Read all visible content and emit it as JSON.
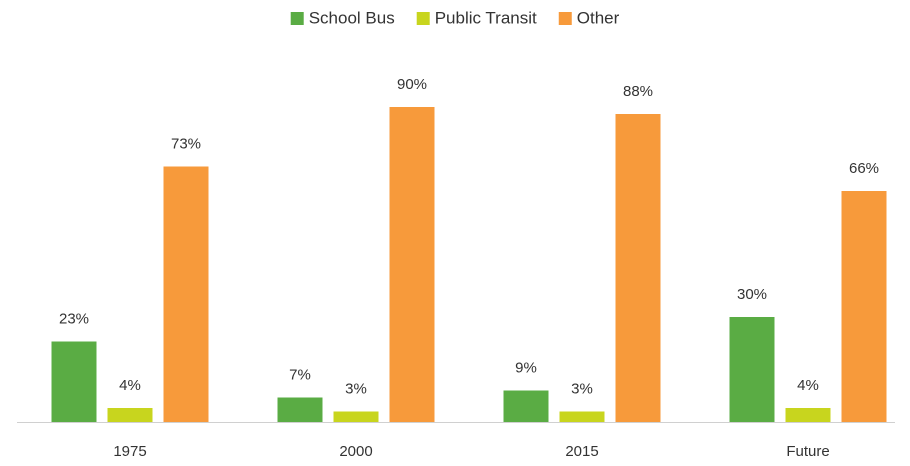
{
  "chart_data": {
    "type": "bar",
    "categories": [
      "1975",
      "2000",
      "2015",
      "Future"
    ],
    "series": [
      {
        "name": "School Bus",
        "color": "#5aac44",
        "values": [
          23,
          7,
          9,
          30
        ],
        "value_labels": [
          "23%",
          "7%",
          "9%",
          "30%"
        ]
      },
      {
        "name": "Public Transit",
        "color": "#c8d51e",
        "values": [
          4,
          3,
          3,
          4
        ],
        "value_labels": [
          "4%",
          "3%",
          "3%",
          "4%"
        ]
      },
      {
        "name": "Other",
        "color": "#f79a3b",
        "values": [
          73,
          90,
          88,
          66
        ],
        "value_labels": [
          "73%",
          "90%",
          "88%",
          "66%"
        ]
      }
    ],
    "ylim": [
      0,
      100
    ],
    "grid": false,
    "legend": "top"
  }
}
